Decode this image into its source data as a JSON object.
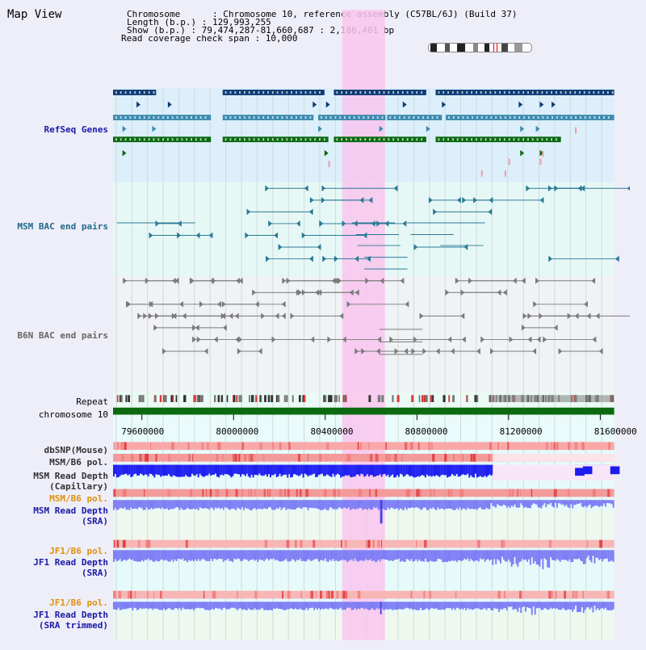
{
  "header": {
    "title": "Map View",
    "line1": "Chromosome      : Chromosome 10, reference assembly (C57BL/6J) (Build 37)",
    "line2": "Length (b.p.) : 129,993,255",
    "line3": "Show (b.p.) : 79,474,287-81,660,687 : 2,186,401 bp",
    "line4": "Read coverage check span : 10,000"
  },
  "tracks": {
    "refseq": "RefSeq Genes",
    "msm_bac": "MSM BAC end pairs",
    "b6n_bac": "B6N BAC end pairs",
    "repeat": "Repeat",
    "chromosome": "chromosome 10",
    "dbsnp": "dbSNP(Mouse)",
    "msm_b6_pol_1": "MSM/B6 pol.",
    "msm_read_depth_cap_1": "MSM Read Depth",
    "msm_read_depth_cap_2": "(Capillary)",
    "msm_b6_pol_2": "MSM/B6 pol.",
    "msm_read_depth_sra_1": "MSM Read Depth",
    "msm_read_depth_sra_2": "(SRA)",
    "jf1_b6_pol_1": "JF1/B6 pol.",
    "jf1_read_depth_sra_1": "JF1 Read Depth",
    "jf1_read_depth_sra_2": "(SRA)",
    "jf1_b6_pol_2": "JF1/B6 pol.",
    "jf1_read_depth_trim_1": "JF1 Read Depth",
    "jf1_read_depth_trim_2": "(SRA trimmed)"
  },
  "axis": {
    "ticks": [
      "79600000",
      "80000000",
      "80400000",
      "80800000",
      "81200000",
      "81600000"
    ],
    "tick_values": [
      79600000,
      80000000,
      80400000,
      80800000,
      81200000,
      81600000
    ],
    "range": [
      79474287,
      81660687
    ]
  },
  "highlight": {
    "start": 80474287,
    "end": 80660687,
    "color": "#f9c6ef"
  },
  "colors": {
    "refseq_dark": "#0c3a73",
    "refseq_mid": "#3d8bb0",
    "refseq_green": "#0b6a10",
    "msm_bac": "#2a7a95",
    "b6n_bac": "#7a7a7a",
    "capillary": "#1c1cf0",
    "sra": "#7d7df5",
    "pol": "#f39b9b",
    "dbsnp": "#f8a8a8"
  }
}
